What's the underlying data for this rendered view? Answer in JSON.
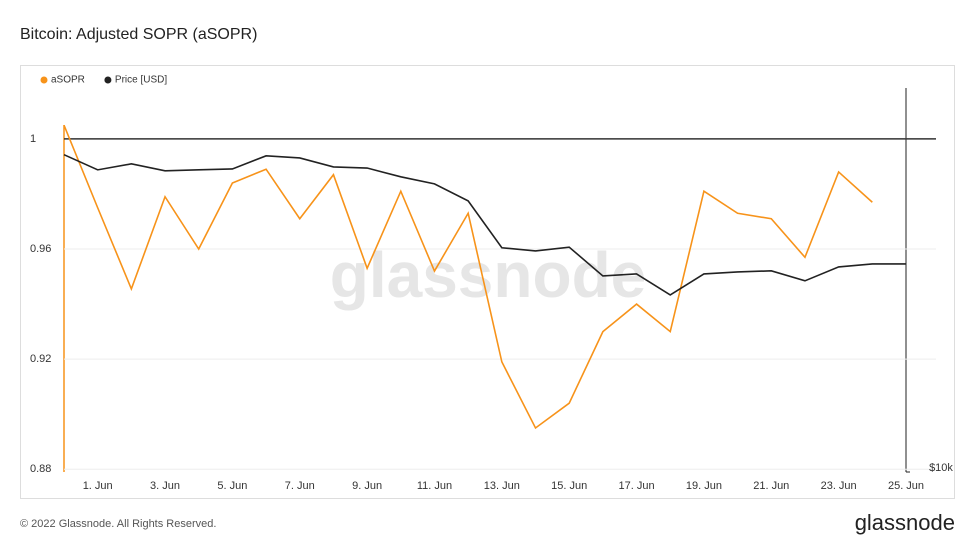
{
  "title": "Bitcoin: Adjusted SOPR (aSOPR)",
  "footer": "© 2022 Glassnode. All Rights Reserved.",
  "logo": "glassnode",
  "chart_data": {
    "type": "line",
    "watermark": "glassnode",
    "categories": [
      null,
      "1. Jun",
      null,
      "3. Jun",
      null,
      "5. Jun",
      null,
      "7. Jun",
      null,
      "9. Jun",
      null,
      "11. Jun",
      null,
      "13. Jun",
      null,
      "15. Jun",
      null,
      "17. Jun",
      null,
      "19. Jun",
      null,
      "21. Jun",
      null,
      "23. Jun",
      null,
      "25. Jun"
    ],
    "series": [
      {
        "name": "aSOPR",
        "color": "#f7931a",
        "axis": "y",
        "values": [
          1.005,
          0.975,
          0.9455,
          0.979,
          0.96,
          0.984,
          0.989,
          0.971,
          0.987,
          0.953,
          0.981,
          0.952,
          0.973,
          0.919,
          0.895,
          0.904,
          0.93,
          0.94,
          0.93,
          0.981,
          0.973,
          0.971,
          0.957,
          0.988,
          0.977,
          null
        ]
      },
      {
        "name": "Price [USD]",
        "color": "#222222",
        "axis": "y2",
        "values": [
          31700,
          30000,
          30660,
          29900,
          30000,
          30100,
          31570,
          31330,
          30320,
          30200,
          29250,
          28510,
          26800,
          22600,
          22340,
          22650,
          20400,
          20550,
          19040,
          20550,
          20700,
          20780,
          20040,
          21080,
          21310,
          21310
        ]
      }
    ],
    "ylim": [
      0.879,
      1.0185
    ],
    "yticks": [
      0.88,
      0.92,
      0.96,
      1
    ],
    "reference_line": 1,
    "y2lim": [
      10000,
      40400
    ],
    "y2log": true,
    "y2ticks": [
      {
        "value": 10000,
        "label": "$10k"
      }
    ],
    "grid": true,
    "legend": "top-left"
  }
}
